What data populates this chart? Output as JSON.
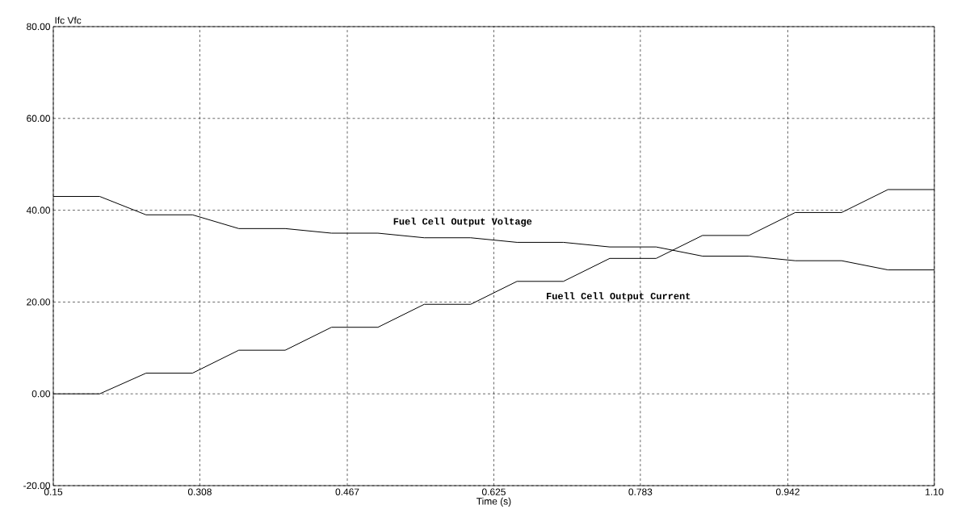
{
  "chart_data": {
    "type": "line",
    "xlabel": "Time (s)",
    "ylabel": "Ifc    Vfc",
    "x": [
      0.15,
      0.2,
      0.25,
      0.3,
      0.35,
      0.4,
      0.45,
      0.5,
      0.55,
      0.6,
      0.65,
      0.7,
      0.75,
      0.8,
      0.85,
      0.9,
      0.95,
      1.0,
      1.05,
      1.1
    ],
    "series": [
      {
        "name": "Fuel Cell Output Voltage",
        "color": "#000000",
        "values": [
          43,
          43,
          39,
          39,
          36,
          36,
          35,
          35,
          34,
          34,
          33,
          33,
          32,
          32,
          30,
          30,
          29,
          29,
          27,
          27
        ]
      },
      {
        "name": "Fuell Cell Output Current",
        "color": "#000000",
        "values": [
          0,
          0,
          4.5,
          4.5,
          9.5,
          9.5,
          14.5,
          14.5,
          19.5,
          19.5,
          24.5,
          24.5,
          29.5,
          29.5,
          34.5,
          34.5,
          39.5,
          39.5,
          44.5,
          44.5
        ]
      }
    ],
    "xlim": [
      0.15,
      1.1
    ],
    "ylim": [
      -20,
      80
    ],
    "xticks": [
      0.15,
      0.308,
      0.467,
      0.625,
      0.783,
      0.942,
      {
        "value": 1.1,
        "label": "1.10"
      }
    ],
    "yticks": [
      {
        "value": -20,
        "label": "-20.00"
      },
      {
        "value": 0,
        "label": "0.00"
      },
      {
        "value": 20,
        "label": "20.00"
      },
      {
        "value": 40,
        "label": "40.00"
      },
      {
        "value": 60,
        "label": "60.00"
      },
      {
        "value": 80,
        "label": "80.00"
      }
    ],
    "grid": true,
    "legend": false,
    "marker": "none",
    "line_style": "solid"
  }
}
